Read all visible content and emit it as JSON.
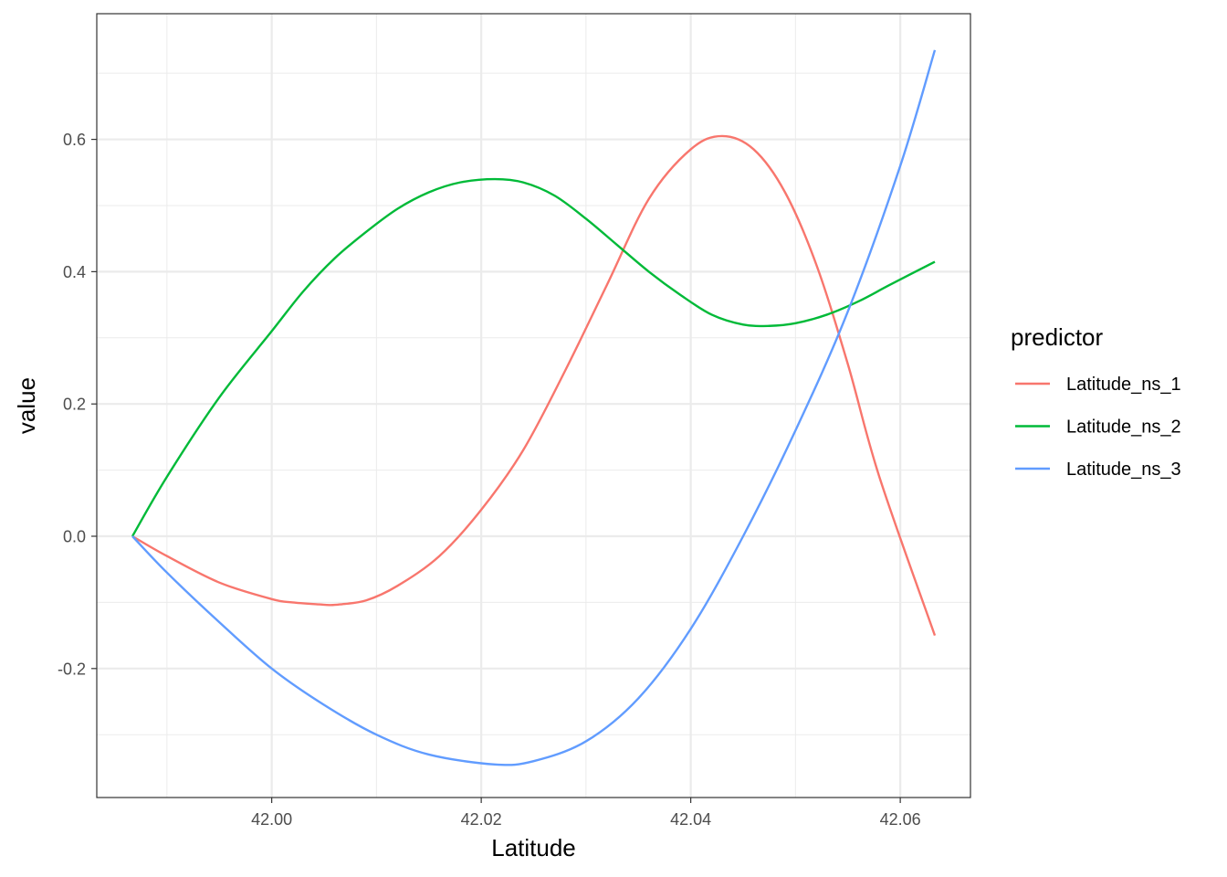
{
  "chart_data": {
    "type": "line",
    "title": "",
    "xlabel": "Latitude",
    "ylabel": "value",
    "xlim": [
      41.9833,
      42.0667
    ],
    "ylim": [
      -0.395,
      0.79
    ],
    "x_ticks": [
      42.0,
      42.02,
      42.04,
      42.06
    ],
    "x_tick_labels": [
      "42.00",
      "42.02",
      "42.04",
      "42.06"
    ],
    "y_ticks": [
      -0.2,
      0.0,
      0.2,
      0.4,
      0.6
    ],
    "y_tick_labels": [
      "-0.2",
      "0.0",
      "0.2",
      "0.4",
      "0.6"
    ],
    "grid": true,
    "legend": {
      "title": "predictor",
      "position": "right"
    },
    "series": [
      {
        "name": "Latitude_ns_1",
        "color": "#F8766D",
        "x": [
          41.9867,
          41.99,
          41.995,
          42.0,
          42.002,
          42.0045,
          42.0055,
          42.0065,
          42.009,
          42.012,
          42.016,
          42.02,
          42.024,
          42.028,
          42.032,
          42.036,
          42.04,
          42.043,
          42.046,
          42.049,
          42.052,
          42.055,
          42.058,
          42.0633
        ],
        "values": [
          0.0,
          -0.03,
          -0.07,
          -0.095,
          -0.1,
          -0.103,
          -0.104,
          -0.103,
          -0.097,
          -0.075,
          -0.03,
          0.04,
          0.13,
          0.25,
          0.38,
          0.51,
          0.585,
          0.605,
          0.585,
          0.52,
          0.41,
          0.26,
          0.09,
          -0.15
        ]
      },
      {
        "name": "Latitude_ns_2",
        "color": "#00BA38",
        "x": [
          41.9867,
          41.99,
          41.995,
          42.0,
          42.003,
          42.006,
          42.009,
          42.012,
          42.015,
          42.018,
          42.0213,
          42.024,
          42.027,
          42.03,
          42.033,
          42.036,
          42.039,
          42.042,
          42.045,
          42.0475,
          42.05,
          42.053,
          42.056,
          42.059,
          42.0633
        ],
        "values": [
          0.0,
          0.09,
          0.21,
          0.31,
          0.37,
          0.42,
          0.46,
          0.495,
          0.52,
          0.535,
          0.54,
          0.535,
          0.515,
          0.48,
          0.44,
          0.4,
          0.365,
          0.335,
          0.32,
          0.318,
          0.322,
          0.335,
          0.355,
          0.38,
          0.415
        ]
      },
      {
        "name": "Latitude_ns_3",
        "color": "#619CFF",
        "x": [
          41.9867,
          41.99,
          41.995,
          42.0,
          42.005,
          42.01,
          42.015,
          42.0213,
          42.025,
          42.03,
          42.035,
          42.04,
          42.045,
          42.05,
          42.055,
          42.06,
          42.0633
        ],
        "values": [
          0.0,
          -0.055,
          -0.13,
          -0.2,
          -0.255,
          -0.3,
          -0.33,
          -0.345,
          -0.34,
          -0.31,
          -0.245,
          -0.14,
          0.0,
          0.16,
          0.34,
          0.56,
          0.735
        ]
      }
    ]
  }
}
